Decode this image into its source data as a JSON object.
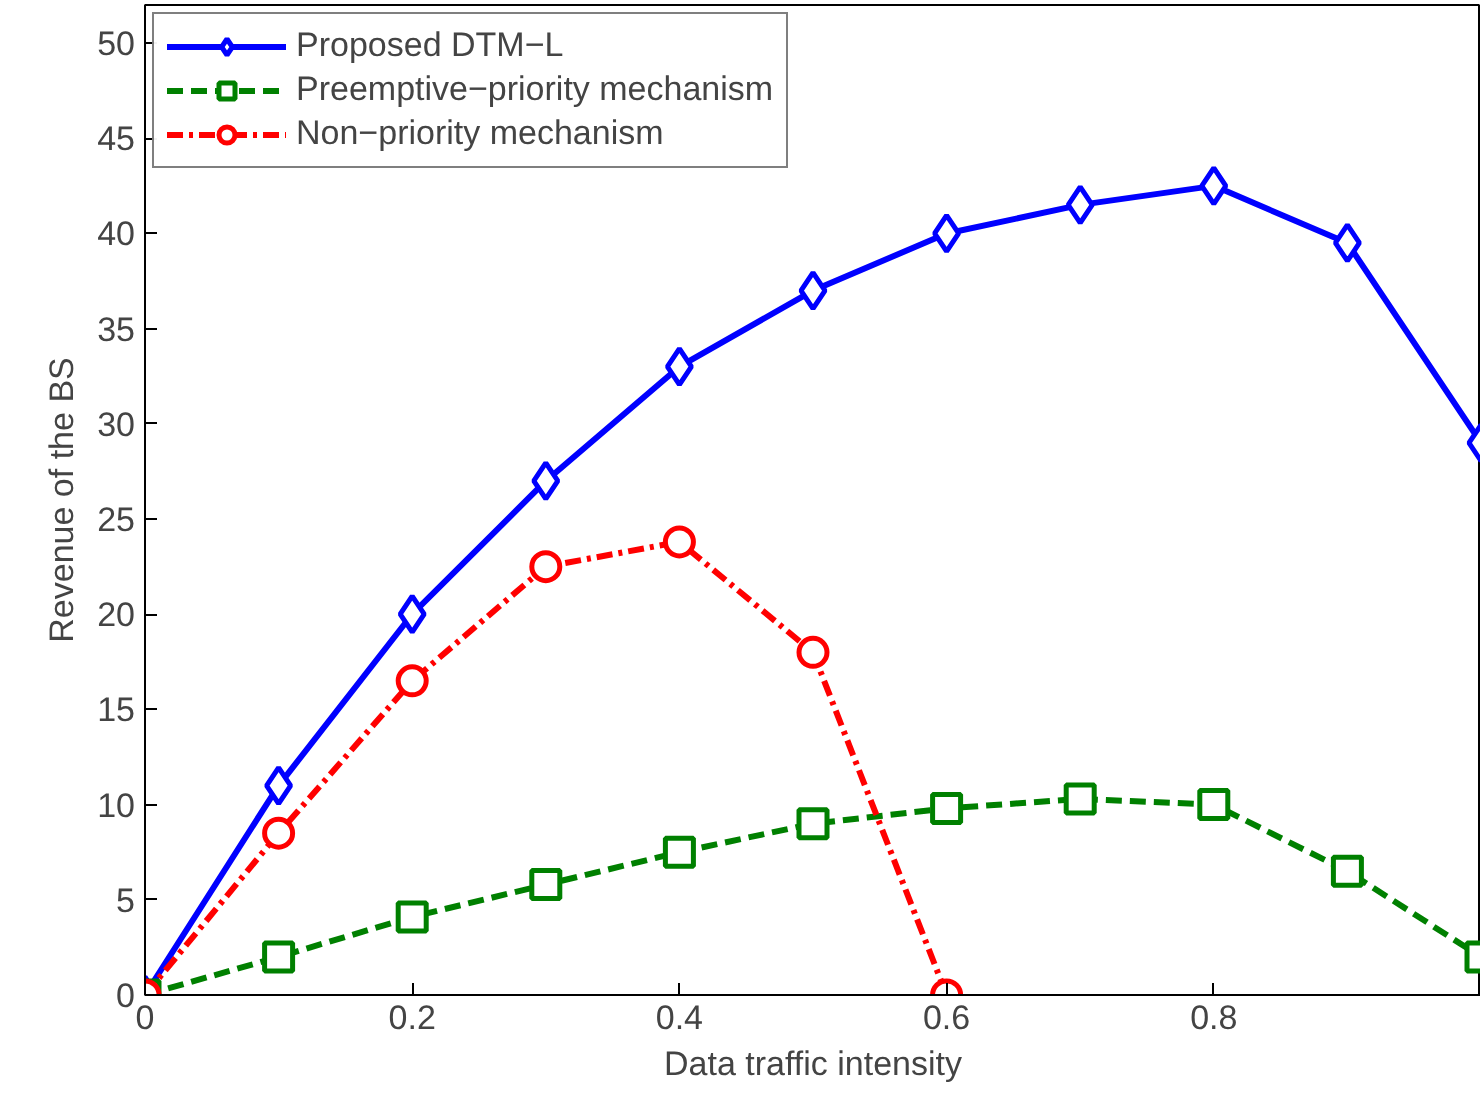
{
  "chart_data": {
    "type": "line",
    "xlabel": "Data traffic intensity",
    "ylabel": "Revenue of the BS",
    "x": [
      0,
      0.1,
      0.2,
      0.3,
      0.4,
      0.5,
      0.6,
      0.7,
      0.8,
      0.9,
      1.0
    ],
    "series": [
      {
        "name": "Proposed DTM−L",
        "color": "#0000ff",
        "marker": "diamond",
        "line_style": "solid",
        "values": [
          0,
          11,
          20,
          27,
          33,
          37,
          40,
          41.5,
          42.5,
          39.5,
          29
        ]
      },
      {
        "name": "Preemptive−priority mechanism",
        "color": "#008000",
        "marker": "square",
        "line_style": "dashed",
        "values": [
          0,
          2,
          4.1,
          5.8,
          7.5,
          9,
          9.8,
          10.3,
          10,
          6.5,
          2
        ]
      },
      {
        "name": "Non−priority mechanism",
        "color": "#ff0000",
        "marker": "circle",
        "line_style": "dashdot",
        "x": [
          0,
          0.1,
          0.2,
          0.3,
          0.4,
          0.5,
          0.6
        ],
        "values": [
          0,
          8.5,
          16.5,
          22.5,
          23.8,
          18,
          0
        ]
      }
    ],
    "xlim": [
      0,
      1
    ],
    "ylim": [
      0,
      52
    ],
    "xticks": [
      0,
      0.2,
      0.4,
      0.6,
      0.8
    ],
    "yticks": [
      0,
      5,
      10,
      15,
      20,
      25,
      30,
      35,
      40,
      45,
      50
    ],
    "grid": false,
    "legend": "top left"
  }
}
